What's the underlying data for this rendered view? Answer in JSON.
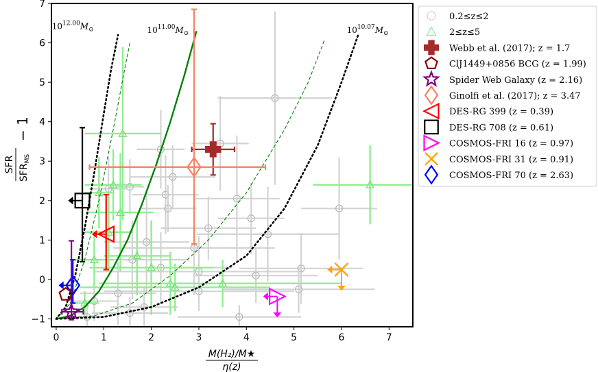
{
  "chart_data": {
    "type": "scatter",
    "title": "",
    "xlabel_num": "M(H₂)/M★",
    "xlabel_den": "η(z)",
    "ylabel_num": "SFR",
    "ylabel_den": "SFR",
    "ylabel_den_sub": "MS",
    "ylabel_tail": "− 1",
    "xlim": [
      -0.1,
      7.5
    ],
    "ylim": [
      -1.2,
      7.0
    ],
    "x_ticks": [
      0,
      1,
      2,
      3,
      4,
      5,
      6,
      7
    ],
    "y_ticks": [
      -1,
      0,
      1,
      2,
      3,
      4,
      5,
      6,
      7
    ],
    "y_tick_labels": [
      "−1",
      "0",
      "1",
      "2",
      "3",
      "4",
      "5",
      "6",
      "7"
    ],
    "legend_position": "outside-right",
    "curve_labels": [
      {
        "base": "10",
        "exp": "12.00",
        "unit": "M",
        "sub": "⊙",
        "x": 0.35,
        "y": 6.35
      },
      {
        "base": "10",
        "exp": "11.00",
        "unit": "M",
        "sub": "⊙",
        "x": 2.35,
        "y": 6.25
      },
      {
        "base": "10",
        "exp": "10.07",
        "unit": "M",
        "sub": "⊙",
        "x": 6.55,
        "y": 6.25
      }
    ],
    "curves": [
      {
        "name": "10^12.00 dotted",
        "style": "dotted",
        "color": "#000000",
        "x": [
          0.0,
          0.2,
          0.4,
          0.6,
          0.8,
          1.0,
          1.15,
          1.3
        ],
        "y": [
          -1.0,
          -0.7,
          0.1,
          1.3,
          2.7,
          4.2,
          5.3,
          6.2
        ]
      },
      {
        "name": "10^12.00 dashed",
        "style": "dashed",
        "color": "#008000",
        "x": [
          0.0,
          0.3,
          0.6,
          0.9,
          1.2,
          1.45,
          1.55
        ],
        "y": [
          -1.0,
          -0.6,
          0.5,
          2.0,
          3.8,
          5.4,
          6.0
        ]
      },
      {
        "name": "10^11.00 solid",
        "style": "solid",
        "color": "#008000",
        "x": [
          0.0,
          0.3,
          0.6,
          0.9,
          1.2,
          1.5,
          1.8,
          2.1,
          2.4,
          2.7,
          2.95
        ],
        "y": [
          -1.0,
          -0.92,
          -0.7,
          -0.3,
          0.3,
          1.0,
          1.9,
          2.9,
          4.0,
          5.2,
          6.3
        ]
      },
      {
        "name": "10^10.07 dashed",
        "style": "dashed",
        "color": "#008000",
        "x": [
          0.0,
          0.8,
          1.6,
          2.4,
          3.2,
          4.0,
          4.8,
          5.3,
          5.65
        ],
        "y": [
          -1.0,
          -0.92,
          -0.6,
          0.1,
          1.0,
          2.2,
          3.8,
          5.0,
          6.1
        ]
      },
      {
        "name": "10^10.07 dotted",
        "style": "dotted",
        "color": "#000000",
        "x": [
          0.0,
          1.0,
          2.0,
          3.0,
          4.0,
          4.8,
          5.5,
          6.0,
          6.35
        ],
        "y": [
          -1.0,
          -0.95,
          -0.7,
          -0.2,
          0.6,
          1.8,
          3.4,
          5.0,
          6.2
        ]
      }
    ],
    "background_grey": [
      {
        "x": 4.6,
        "y": 4.6,
        "xerr": [
          1.2,
          1.2
        ],
        "yerr": [
          2.2,
          2.2
        ]
      },
      {
        "x": 3.45,
        "y": 3.45,
        "xerr": [
          0.6,
          0.6
        ],
        "yerr": [
          1.2,
          1.2
        ]
      },
      {
        "x": 2.2,
        "y": 3.3,
        "xerr": [
          0.5,
          0.5
        ],
        "yerr": [
          1.0,
          1.0
        ]
      },
      {
        "x": 2.45,
        "y": 2.6,
        "xerr": [
          0.9,
          0.9
        ],
        "yerr": [
          0.8,
          0.8
        ]
      },
      {
        "x": 2.3,
        "y": 2.15,
        "xerr": [
          0.7,
          0.7
        ],
        "yerr": [
          1.0,
          1.0
        ]
      },
      {
        "x": 1.55,
        "y": 2.35,
        "xerr": [
          0.3,
          0.3
        ],
        "yerr": [
          0.7,
          0.7
        ]
      },
      {
        "x": 1.1,
        "y": 2.3,
        "xerr": [
          0.4,
          0.4
        ],
        "yerr": [
          0.8,
          0.8
        ]
      },
      {
        "x": 3.8,
        "y": 2.05,
        "xerr": [
          0.9,
          0.9
        ],
        "yerr": [
          1.6,
          1.6
        ]
      },
      {
        "x": 4.1,
        "y": 1.55,
        "xerr": [
          0.7,
          0.7
        ],
        "yerr": [
          0.9,
          0.9
        ]
      },
      {
        "x": 5.95,
        "y": 1.8,
        "xerr": [
          0.8,
          0.8
        ],
        "yerr": [
          1.3,
          1.3
        ]
      },
      {
        "x": 4.45,
        "y": 1.15,
        "xerr": [
          1.5,
          1.5
        ],
        "yerr": [
          1.2,
          1.2
        ]
      },
      {
        "x": 1.9,
        "y": 0.95,
        "xerr": [
          0.9,
          0.9
        ],
        "yerr": [
          1.3,
          1.3
        ]
      },
      {
        "x": 2.9,
        "y": 0.8,
        "xerr": [
          1.7,
          1.7
        ],
        "yerr": [
          1.2,
          1.2
        ]
      },
      {
        "x": 1.6,
        "y": 0.5,
        "xerr": [
          1.2,
          1.2
        ],
        "yerr": [
          1.0,
          1.0
        ]
      },
      {
        "x": 2.2,
        "y": 0.3,
        "xerr": [
          1.5,
          1.5
        ],
        "yerr": [
          0.9,
          0.9
        ]
      },
      {
        "x": 3.0,
        "y": 0.2,
        "xerr": [
          2.2,
          2.2
        ],
        "yerr": [
          0.9,
          0.9
        ]
      },
      {
        "x": 4.2,
        "y": 0.1,
        "xerr": [
          1.3,
          1.3
        ],
        "yerr": [
          0.7,
          0.7
        ]
      },
      {
        "x": 5.15,
        "y": 0.28,
        "xerr": [
          1.3,
          1.3
        ],
        "yerr": [
          0.9,
          0.9
        ]
      },
      {
        "x": 5.1,
        "y": -0.25,
        "xerr": [
          1.6,
          1.6
        ],
        "yerr": [
          0.6,
          0.6
        ]
      },
      {
        "x": 3.0,
        "y": -0.3,
        "xerr": [
          2.0,
          2.0
        ],
        "yerr": [
          0.5,
          0.5
        ]
      },
      {
        "x": 1.3,
        "y": -0.35,
        "xerr": [
          0.8,
          0.8
        ],
        "yerr": [
          0.8,
          0.8
        ]
      },
      {
        "x": 0.8,
        "y": -0.55,
        "xerr": [
          0.5,
          0.5
        ],
        "yerr": [
          0.5,
          0.5
        ]
      },
      {
        "x": 1.85,
        "y": -0.7,
        "xerr": [
          0.7,
          0.7
        ],
        "yerr": [
          0.5,
          0.5
        ]
      },
      {
        "x": 1.55,
        "y": -0.85,
        "xerr": [
          0.8,
          0.8
        ],
        "yerr": [
          0.4,
          0.4
        ]
      },
      {
        "x": 3.85,
        "y": -0.95,
        "xerr": [
          1.3,
          1.3
        ],
        "yerr": [
          0.3,
          0.3
        ]
      },
      {
        "x": 0.65,
        "y": -0.95,
        "xerr": [
          0.4,
          0.4
        ],
        "yerr": [
          0.3,
          0.3
        ]
      },
      {
        "x": 2.35,
        "y": 1.8,
        "xerr": [
          0.6,
          0.6
        ],
        "yerr": [
          0.6,
          0.6
        ]
      },
      {
        "x": 3.2,
        "y": 1.3,
        "xerr": [
          1.0,
          1.0
        ],
        "yerr": [
          0.8,
          0.8
        ]
      }
    ],
    "background_green": [
      {
        "x": 1.4,
        "y": 3.7,
        "xerr": [
          0.8,
          0.8
        ],
        "yerr": [
          2.2,
          2.2
        ]
      },
      {
        "x": 1.2,
        "y": 2.4,
        "xerr": [
          0.6,
          0.6
        ],
        "yerr": [
          0.9,
          0.9
        ]
      },
      {
        "x": 0.9,
        "y": 2.2,
        "xerr": [
          0.3,
          0.3
        ],
        "yerr": [
          0.9,
          0.9
        ]
      },
      {
        "x": 1.35,
        "y": 1.7,
        "xerr": [
          0.7,
          0.7
        ],
        "yerr": [
          1.5,
          1.5
        ]
      },
      {
        "x": 1.1,
        "y": 1.2,
        "xerr": [
          0.5,
          0.5
        ],
        "yerr": [
          1.0,
          1.0
        ]
      },
      {
        "x": 1.7,
        "y": 0.6,
        "xerr": [
          0.7,
          0.7
        ],
        "yerr": [
          1.0,
          1.0
        ]
      },
      {
        "x": 2.0,
        "y": 0.3,
        "xerr": [
          1.3,
          1.3
        ],
        "yerr": [
          1.2,
          1.2
        ]
      },
      {
        "x": 2.4,
        "y": -0.1,
        "xerr": [
          1.5,
          1.5
        ],
        "yerr": [
          0.8,
          0.8
        ]
      },
      {
        "x": 3.5,
        "y": -0.1,
        "xerr": [
          2.5,
          2.5
        ],
        "yerr": [
          0.6,
          0.6
        ]
      },
      {
        "x": 2.5,
        "y": -0.2,
        "xerr": [
          2.0,
          2.0
        ],
        "yerr": [
          0.6,
          0.6
        ]
      },
      {
        "x": 6.6,
        "y": 2.4,
        "xerr": [
          1.2,
          1.2
        ],
        "yerr": [
          1.0,
          1.0
        ]
      },
      {
        "x": 0.6,
        "y": -0.6,
        "xerr": [
          0.3,
          0.3
        ],
        "yerr": [
          0.3,
          0.3
        ]
      },
      {
        "x": 0.8,
        "y": 0.5,
        "xerr": [
          0.4,
          0.4
        ],
        "yerr": [
          0.7,
          0.7
        ]
      }
    ],
    "highlighted": [
      {
        "name": "Webb et al. (2017); z = 1.7",
        "marker": "plus",
        "color": "#a52a2a",
        "x": 3.3,
        "y": 3.3,
        "xerr": [
          0.45,
          0.45
        ],
        "yerr": [
          0.65,
          0.65
        ],
        "arrow": ""
      },
      {
        "name": "Ginolfi et al. (2017); z = 3.47",
        "marker": "diamond",
        "color": "#fa8060",
        "x": 2.9,
        "y": 2.85,
        "xerr": [
          2.2,
          1.5
        ],
        "yerr": [
          1.95,
          4.0
        ],
        "arrow": ""
      },
      {
        "name": "DES-RG 708 (z = 0.61)",
        "marker": "square",
        "color": "#000000",
        "x": 0.55,
        "y": 2.0,
        "xerr": [
          0,
          0
        ],
        "yerr": [
          1.55,
          1.85
        ],
        "arrow": "left"
      },
      {
        "name": "DES-RG 399 (z = 0.39)",
        "marker": "triangle-left",
        "color": "#ff0000",
        "x": 1.05,
        "y": 1.15,
        "xerr": [
          0,
          0
        ],
        "yerr": [
          0.9,
          1.0
        ],
        "arrow": "left"
      },
      {
        "name": "COSMOS-FRI 70 (z = 2.63)",
        "marker": "diamond",
        "color": "#0000ff",
        "x": 0.35,
        "y": -0.15,
        "xerr": [
          0,
          0
        ],
        "yerr": [
          0.45,
          0.65
        ],
        "arrow": "left"
      },
      {
        "name": "Spider Web Galaxy (z = 2.16)",
        "marker": "star",
        "color": "#800080",
        "x": 0.32,
        "y": -0.82,
        "xerr": [
          0.2,
          0.25
        ],
        "yerr": [
          0.2,
          1.8
        ],
        "arrow": ""
      },
      {
        "name": "ClJ1449+0856 BCG (z = 1.99)",
        "marker": "pentagon",
        "color": "#8b0000",
        "x": 0.2,
        "y": -0.38,
        "xerr": [
          0,
          0
        ],
        "yerr": [
          0,
          0
        ],
        "arrow": ""
      },
      {
        "name": "COSMOS-FRI 16 (z = 0.97)",
        "marker": "triangle-right",
        "color": "#ff00ff",
        "x": 4.65,
        "y": -0.43,
        "xerr": [
          0,
          0
        ],
        "yerr": [
          0,
          0
        ],
        "arrow": "both"
      },
      {
        "name": "COSMOS-FRI 31 (z = 0.91)",
        "marker": "x",
        "color": "#ffa500",
        "x": 6.0,
        "y": 0.25,
        "xerr": [
          0,
          0
        ],
        "yerr": [
          0,
          0
        ],
        "arrow": "both"
      }
    ],
    "legend": [
      {
        "label": "0.2≤z≤2",
        "marker": "circle-open",
        "color": "#d3d3d3"
      },
      {
        "label": "2≤z≤5",
        "marker": "triangle-up-open",
        "color": "#90ee90"
      },
      {
        "label": "Webb et al. (2017); z = 1.7",
        "marker": "plus",
        "color": "#a52a2a"
      },
      {
        "label": "ClJ1449+0856 BCG (z = 1.99)",
        "marker": "pentagon",
        "color": "#8b0000"
      },
      {
        "label": "Spider Web Galaxy (z = 2.16)",
        "marker": "star",
        "color": "#800080"
      },
      {
        "label": "Ginolfi et al. (2017); z = 3.47",
        "marker": "diamond",
        "color": "#fa8060"
      },
      {
        "label": "DES-RG 399 (z = 0.39)",
        "marker": "triangle-left",
        "color": "#ff0000"
      },
      {
        "label": "DES-RG 708 (z = 0.61)",
        "marker": "square",
        "color": "#000000"
      },
      {
        "label": "COSMOS-FRI 16 (z = 0.97)",
        "marker": "triangle-right",
        "color": "#ff00ff"
      },
      {
        "label": "COSMOS-FRI 31 (z = 0.91)",
        "marker": "x",
        "color": "#ffa500"
      },
      {
        "label": "COSMOS-FRI 70 (z = 2.63)",
        "marker": "diamond",
        "color": "#0000ff"
      }
    ]
  }
}
